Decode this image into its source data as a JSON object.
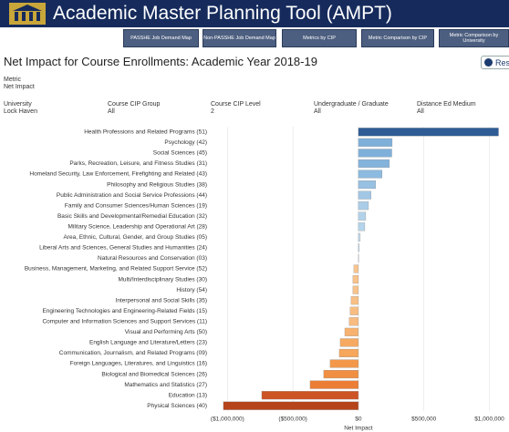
{
  "header": {
    "title": "Academic Master Planning Tool (AMPT)",
    "buttons": [
      "PASSHE Job Demand Map",
      "Non-PASSHE Job Demand Map",
      "Metrics by CIP",
      "Metric Comparison by CIP",
      "Metric Comparison by University"
    ]
  },
  "page_title": "Net Impact for Course Enrollments:  Academic Year 2018-19",
  "reset": "Reset",
  "metric": {
    "label": "Metric",
    "value": "Net Impact"
  },
  "filters": [
    {
      "label": "University",
      "value": "Lock Haven"
    },
    {
      "label": "Course CIP Group",
      "value": "All"
    },
    {
      "label": "Course CIP Level",
      "value": "2"
    },
    {
      "label": "Undergraduate / Graduate",
      "value": "All"
    },
    {
      "label": "Distance Ed Medium",
      "value": "All"
    }
  ],
  "chart_data": {
    "type": "hbar",
    "x_label": "Net Impact",
    "categories": [
      "Health Professions and Related Programs (51)",
      "Psychology (42)",
      "Social Sciences (45)",
      "Parks, Recreation, Leisure, and Fitness Studies (31)",
      "Homeland Security, Law Enforcement, Firefighting and Related (43)",
      "Philosophy and Religious Studies (38)",
      "Public Administration and Social Service Professions (44)",
      "Family and Consumer Sciences/Human Sciences (19)",
      "Basic Skills and Developmental/Remedial Education (32)",
      "Military Science, Leadership and Operational Art (28)",
      "Area, Ethnic, Cultural, Gender, and Group Studies (05)",
      "Liberal Arts and Sciences, General Studies and Humanities (24)",
      "Natural Resources and Conservation (03)",
      "Business, Management, Marketing, and Related Support Service (52)",
      "Multi/Interdisciplinary Studies (30)",
      "History (54)",
      "Interpersonal and Social Skills (35)",
      "Engineering Technologies and Engineering-Related Fields (15)",
      "Computer and Information Sciences and Support Services (11)",
      "Visual and Performing Arts (50)",
      "English Language and Literature/Letters (23)",
      "Communication, Journalism, and Related Programs (09)",
      "Foreign Languages, Literatures, and Linguistics (16)",
      "Biological and Biomedical Sciences (26)",
      "Mathematics and Statistics (27)",
      "Education (13)",
      "Physical Sciences (40)"
    ],
    "values": [
      1070000,
      258000,
      255000,
      237000,
      181000,
      132000,
      97000,
      77000,
      56000,
      49000,
      14000,
      7000,
      3000,
      -35000,
      -42000,
      -42000,
      -56000,
      -63000,
      -70000,
      -104000,
      -139000,
      -146000,
      -216000,
      -265000,
      -369000,
      -738000,
      -1031000
    ],
    "colors": [
      "#2e5c94",
      "#7fb0da",
      "#7fb0da",
      "#84b3dc",
      "#8dbadf",
      "#97c0e2",
      "#a2c7e5",
      "#abcde8",
      "#b3d2ea",
      "#b6d4eb",
      "#c4dcee",
      "#c8def0",
      "#cbe0f0",
      "#f9c48e",
      "#f9c28b",
      "#f9c28b",
      "#f8bf86",
      "#f8bd83",
      "#f8bb80",
      "#f7b26f",
      "#f6a960",
      "#f6a75c",
      "#f3984a",
      "#f08f42",
      "#eb7d35",
      "#cd5424",
      "#b5441b"
    ],
    "xlim": [
      -1100000,
      1150000
    ],
    "xticks": [
      {
        "value": -1000000,
        "label": "($1,000,000)"
      },
      {
        "value": -500000,
        "label": "($500,000)"
      },
      {
        "value": 0,
        "label": "$0"
      },
      {
        "value": 500000,
        "label": "$500,000"
      },
      {
        "value": 1000000,
        "label": "$1,000,000"
      }
    ],
    "grid": true
  }
}
